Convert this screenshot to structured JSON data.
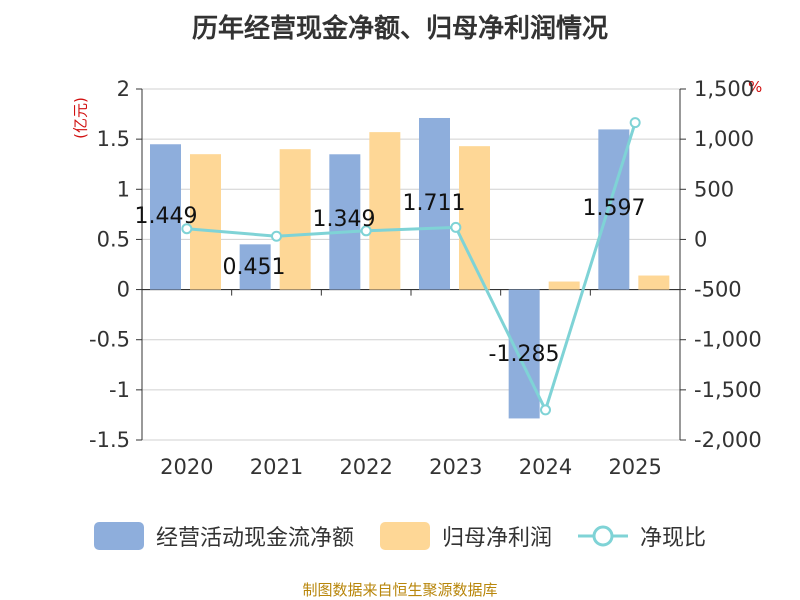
{
  "title": "历年经营现金净额、归母净利润情况",
  "unit_left": "(亿元)",
  "unit_right": "%",
  "legend": {
    "cash_flow": "经营活动现金流净额",
    "net_profit": "归母净利润",
    "ratio": "净现比"
  },
  "footer": "制图数据来自恒生聚源数据库",
  "colors": {
    "cash_flow": "#8eaedc",
    "net_profit": "#fed796",
    "ratio": "#7fd3d6"
  },
  "chart_data": {
    "type": "bar",
    "categories": [
      "2020",
      "2021",
      "2022",
      "2023",
      "2024",
      "2025"
    ],
    "series": [
      {
        "name": "经营活动现金流净额",
        "axis": "left",
        "values": [
          1.449,
          0.451,
          1.349,
          1.711,
          -1.285,
          1.597
        ],
        "labels": [
          "1.449",
          "0.451",
          "1.349",
          "1.711",
          "-1.285",
          "1.597"
        ]
      },
      {
        "name": "归母净利润",
        "axis": "left",
        "values": [
          1.35,
          1.4,
          1.57,
          1.43,
          0.08,
          0.14
        ]
      },
      {
        "name": "净现比",
        "type": "line",
        "axis": "right",
        "values": [
          107,
          32,
          86,
          120,
          -1700,
          1165
        ]
      }
    ],
    "y_left": {
      "min": -1.5,
      "max": 2,
      "step": 0.5,
      "ticks": [
        "2",
        "1.5",
        "1",
        "0.5",
        "0",
        "-0.5",
        "-1",
        "-1.5"
      ]
    },
    "y_right": {
      "min": -2000,
      "max": 1500,
      "step": 500,
      "ticks": [
        "1,500",
        "1,000",
        "500",
        "0",
        "-500",
        "-1,000",
        "-1,500",
        "-2,000"
      ]
    },
    "grid": true
  }
}
